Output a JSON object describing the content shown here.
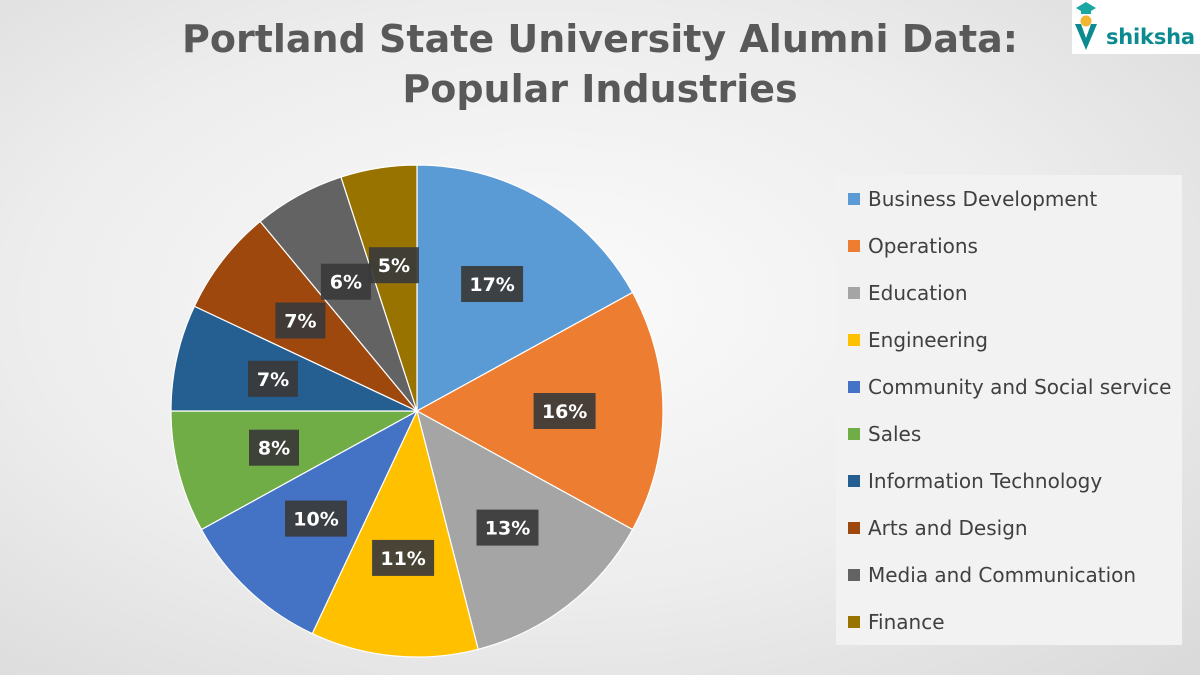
{
  "logo": {
    "text": "shiksha",
    "icon": "graduation-cap-logo-icon"
  },
  "chart_data": {
    "type": "pie",
    "title_lines": [
      "Portland State University Alumni Data:",
      "Popular Industries"
    ],
    "start_angle_deg": 0,
    "direction": "clockwise",
    "legend_position": "right",
    "slices": [
      {
        "name": "Business Development",
        "label": "17%",
        "value": 17,
        "color": "#5b9bd5"
      },
      {
        "name": "Operations",
        "label": "16%",
        "value": 16,
        "color": "#ed7d31"
      },
      {
        "name": "Education",
        "label": "13%",
        "value": 13,
        "color": "#a5a5a5"
      },
      {
        "name": "Engineering",
        "label": "11%",
        "value": 11,
        "color": "#ffc000"
      },
      {
        "name": "Community and Social service",
        "label": "10%",
        "value": 10,
        "color": "#4472c4"
      },
      {
        "name": "Sales",
        "label": "8%",
        "value": 8,
        "color": "#70ad47"
      },
      {
        "name": "Information Technology",
        "label": "7%",
        "value": 7,
        "color": "#255e91"
      },
      {
        "name": "Arts and Design",
        "label": "7%",
        "value": 7,
        "color": "#9e480e"
      },
      {
        "name": "Media and Communication",
        "label": "6%",
        "value": 6,
        "color": "#636363"
      },
      {
        "name": "Finance",
        "label": "5%",
        "value": 5,
        "color": "#997300"
      }
    ]
  }
}
